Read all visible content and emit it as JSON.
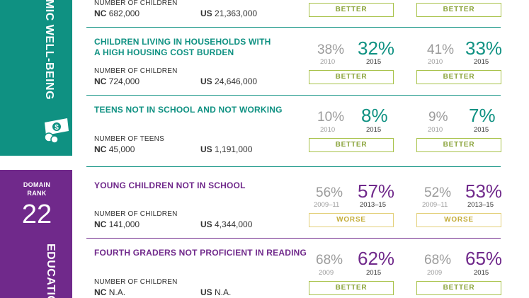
{
  "domains": {
    "economic": {
      "label": "ECONOMIC WELL-BEING",
      "visible_label": "OMIC WELL-BEING",
      "color": "#0f9182",
      "icon": "money-icon"
    },
    "education": {
      "rank_label_line1": "DOMAIN",
      "rank_label_line2": "RANK",
      "rank": "22",
      "label": "EDUCATIO",
      "color": "#70298b"
    }
  },
  "indicators": [
    {
      "title_line1": "",
      "title_line2": "",
      "count_label": "NUMBER OF CHILDREN",
      "nc": "682,000",
      "us": "21,363,000",
      "nc_prefix": "NC",
      "us_prefix": "US",
      "nc_badge": "BETTER",
      "us_badge": "BETTER"
    },
    {
      "title_line1": "CHILDREN LIVING IN HOUSEHOLDS WITH",
      "title_line2": "A HIGH HOUSING COST BURDEN",
      "count_label": "NUMBER OF CHILDREN",
      "nc_prefix": "NC",
      "nc": "724,000",
      "us_prefix": "US",
      "us": "24,646,000",
      "nc_old": "38%",
      "nc_old_year": "2010",
      "nc_new": "32%",
      "nc_new_year": "2015",
      "nc_badge": "BETTER",
      "us_old": "41%",
      "us_old_year": "2010",
      "us_new": "33%",
      "us_new_year": "2015",
      "us_badge": "BETTER"
    },
    {
      "title_line1": "TEENS NOT IN SCHOOL AND NOT WORKING",
      "count_label": "NUMBER OF TEENS",
      "nc_prefix": "NC",
      "nc": "45,000",
      "us_prefix": "US",
      "us": "1,191,000",
      "nc_old": "10%",
      "nc_old_year": "2010",
      "nc_new": "8%",
      "nc_new_year": "2015",
      "nc_badge": "BETTER",
      "us_old": "9%",
      "us_old_year": "2010",
      "us_new": "7%",
      "us_new_year": "2015",
      "us_badge": "BETTER"
    },
    {
      "title_line1": "YOUNG CHILDREN NOT IN SCHOOL",
      "count_label": "NUMBER OF CHILDREN",
      "nc_prefix": "NC",
      "nc": "141,000",
      "us_prefix": "US",
      "us": "4,344,000",
      "nc_old": "56%",
      "nc_old_year": "2009–11",
      "nc_new": "57%",
      "nc_new_year": "2013–15",
      "nc_badge": "WORSE",
      "us_old": "52%",
      "us_old_year": "2009–11",
      "us_new": "53%",
      "us_new_year": "2013–15",
      "us_badge": "WORSE"
    },
    {
      "title_line1": "FOURTH GRADERS NOT PROFICIENT IN READING",
      "count_label": "NUMBER OF CHILDREN",
      "nc_prefix": "NC",
      "nc": "N.A.",
      "us_prefix": "US",
      "us": "N.A.",
      "nc_old": "68%",
      "nc_old_year": "2009",
      "nc_new": "62%",
      "nc_new_year": "2015",
      "nc_badge": "BETTER",
      "us_old": "68%",
      "us_old_year": "2009",
      "us_new": "65%",
      "us_new_year": "2015",
      "us_badge": "BETTER"
    }
  ]
}
